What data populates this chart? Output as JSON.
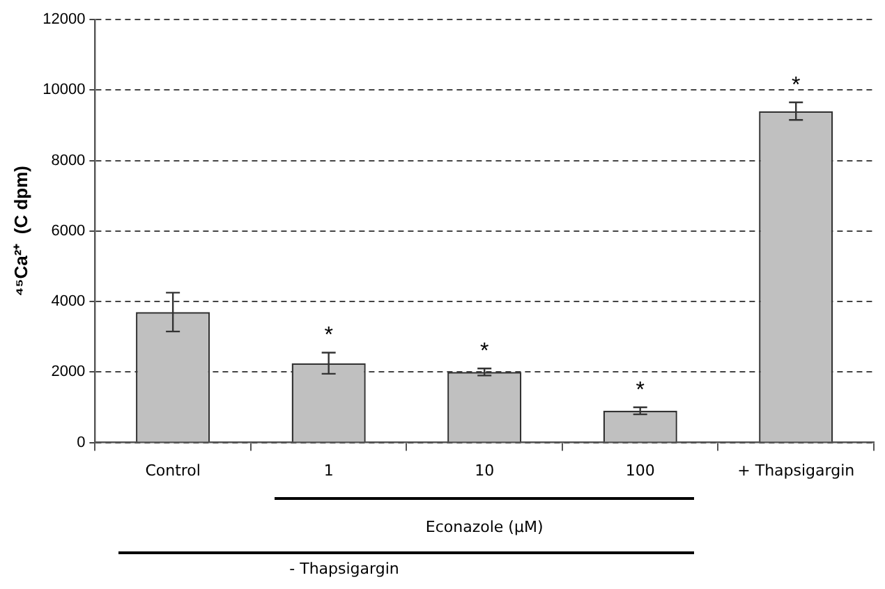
{
  "chart_data": {
    "type": "bar",
    "ylabel": "⁴⁵Ca²⁺  (C dpm)",
    "categories": [
      "Control",
      "1",
      "10",
      "100",
      "+ Thapsigargin"
    ],
    "values": [
      3700,
      2250,
      2000,
      900,
      9400
    ],
    "errors": [
      550,
      300,
      100,
      100,
      250
    ],
    "color": "#c0c0c0",
    "ylim": [
      0,
      12000
    ],
    "yticks": [
      0,
      2000,
      4000,
      6000,
      8000,
      10000,
      12000
    ],
    "grid": "y",
    "annotations": [
      {
        "text": "*",
        "x": "1",
        "y": 2250
      },
      {
        "text": "*",
        "x": "10",
        "y": 2000
      },
      {
        "text": "*",
        "x": "100",
        "y": 900
      },
      {
        "text": "*",
        "x": "+ Thapsigargin",
        "y": 9400
      },
      "Econazole (μM)",
      "- Thapsigargin"
    ]
  }
}
